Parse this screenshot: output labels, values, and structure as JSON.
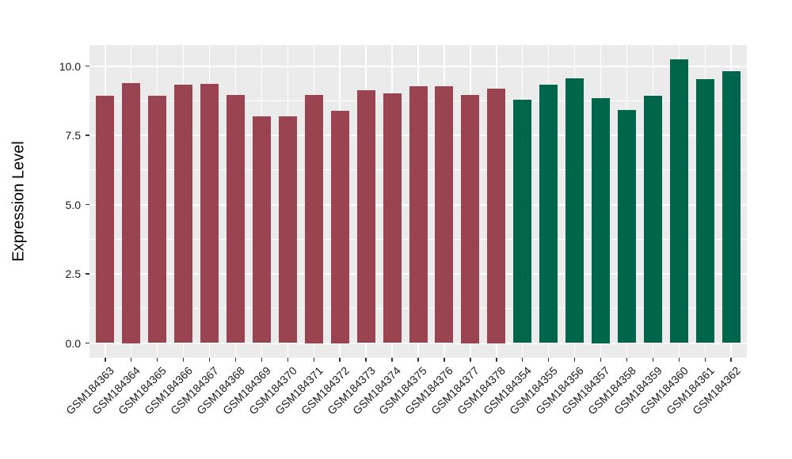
{
  "figure": {
    "background": "#FFFFFF"
  },
  "chart_data": {
    "type": "bar",
    "ylabel": "Expression Level",
    "xlabel": "",
    "categories": [
      "GSM184363",
      "GSM184364",
      "GSM184365",
      "GSM184366",
      "GSM184367",
      "GSM184368",
      "GSM184369",
      "GSM184370",
      "GSM184371",
      "GSM184372",
      "GSM184373",
      "GSM184374",
      "GSM184375",
      "GSM184376",
      "GSM184377",
      "GSM184378",
      "GSM184354",
      "GSM184355",
      "GSM184356",
      "GSM184357",
      "GSM184358",
      "GSM184359",
      "GSM184360",
      "GSM184361",
      "GSM184362"
    ],
    "values": [
      8.93,
      9.4,
      8.93,
      9.32,
      9.36,
      8.97,
      8.19,
      8.19,
      8.95,
      8.4,
      9.12,
      9.02,
      9.27,
      9.27,
      8.95,
      9.2,
      8.79,
      9.34,
      9.57,
      8.85,
      8.41,
      8.92,
      10.24,
      9.52,
      9.82
    ],
    "colors": [
      "#9B4451",
      "#9B4451",
      "#9B4451",
      "#9B4451",
      "#9B4451",
      "#9B4451",
      "#9B4451",
      "#9B4451",
      "#9B4451",
      "#9B4451",
      "#9B4451",
      "#9B4451",
      "#9B4451",
      "#9B4451",
      "#9B4451",
      "#9B4451",
      "#00664B",
      "#00664B",
      "#00664B",
      "#00664B",
      "#00664B",
      "#00664B",
      "#00664B",
      "#00664B",
      "#00664B"
    ],
    "group_colors": {
      "left_group": "#9B4451",
      "right_group": "#00664B"
    },
    "y_tick_labels": [
      "0.0",
      "2.5",
      "5.0",
      "7.5",
      "10.0"
    ],
    "y_major_breaks": [
      0.0,
      2.5,
      5.0,
      7.5,
      10.0
    ],
    "y_minor_breaks": [
      1.25,
      3.75,
      6.25,
      8.75
    ],
    "ylim": [
      -0.51,
      10.77
    ],
    "grid": "on",
    "legend": "none",
    "panel_background": "#EBEBEB",
    "gridline_color": "#FFFFFF",
    "tick_mark_color": "#333333"
  }
}
